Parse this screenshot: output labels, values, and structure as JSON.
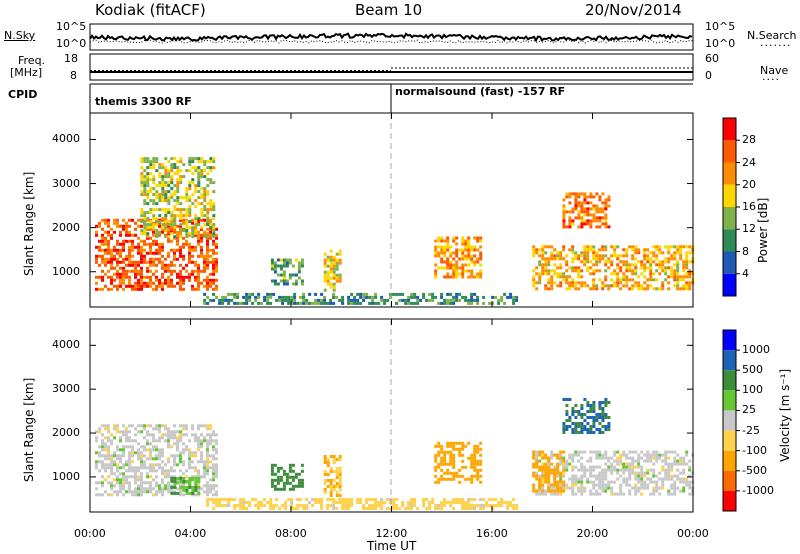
{
  "header": {
    "station": "Kodiak (fitACF)",
    "beam": "Beam 10",
    "date": "20/Nov/2014"
  },
  "top_panels": {
    "nsky_label": "N.Sky",
    "nsky_ticks": [
      "10^5",
      "10^0"
    ],
    "nsearch_label": "N.Search",
    "nsearch_ticks": [
      "10^5",
      "10^0"
    ],
    "freq_label_1": "Freq.",
    "freq_label_2": "[MHz]",
    "freq_ticks": [
      "18",
      "8"
    ],
    "nave_label": "Nave",
    "nave_ticks": [
      "60",
      "0"
    ],
    "cpid_label": "CPID",
    "cpid_segments": [
      "themis 3300 RF",
      "normalsound (fast) -157 RF"
    ]
  },
  "colors": {
    "power": [
      "#0000ff",
      "#1e5ab4",
      "#2e8b57",
      "#7fb24b",
      "#ffd700",
      "#ff8c00",
      "#ff5a00",
      "#ff0000"
    ],
    "velocity": [
      "#ff0000",
      "#ff6a00",
      "#ffa500",
      "#ffd24d",
      "#c8c8c8",
      "#64c832",
      "#3c8c3c",
      "#1e64b4",
      "#0000ff"
    ],
    "axis": "#000000",
    "divider": "#aaaaaa"
  },
  "chart_data": [
    {
      "type": "heatmap",
      "name": "power",
      "ylabel": "Slant Range [km]",
      "yticks": [
        "4000",
        "3000",
        "2000",
        "1000"
      ],
      "ylim": [
        200,
        4600
      ],
      "xlim": [
        0,
        24
      ],
      "xticks": [
        "00:00",
        "04:00",
        "08:00",
        "12:00",
        "16:00",
        "20:00",
        "00:00"
      ],
      "colorbar": {
        "label": "Power [dB]",
        "ticks": [
          "28",
          "24",
          "20",
          "16",
          "12",
          "8",
          "4"
        ],
        "range": [
          0,
          32
        ]
      },
      "regions": [
        {
          "t": [
            0.2,
            5.0
          ],
          "range": [
            600,
            2200
          ],
          "power": 26
        },
        {
          "t": [
            2.0,
            4.9
          ],
          "range": [
            1800,
            3600
          ],
          "power": 16
        },
        {
          "t": [
            7.2,
            8.5
          ],
          "range": [
            700,
            1300
          ],
          "power": 12
        },
        {
          "t": [
            9.3,
            10.0
          ],
          "range": [
            600,
            1500
          ],
          "power": 18
        },
        {
          "t": [
            13.7,
            15.5
          ],
          "range": [
            900,
            1800
          ],
          "power": 22
        },
        {
          "t": [
            17.6,
            24.0
          ],
          "range": [
            600,
            1600
          ],
          "power": 20
        },
        {
          "t": [
            18.8,
            20.6
          ],
          "range": [
            2000,
            2800
          ],
          "power": 24
        },
        {
          "t": [
            4.5,
            17.0
          ],
          "range": [
            280,
            520
          ],
          "power": 10
        }
      ]
    },
    {
      "type": "heatmap",
      "name": "velocity",
      "ylabel": "Slant Range [km]",
      "yticks": [
        "4000",
        "3000",
        "2000",
        "1000"
      ],
      "ylim": [
        200,
        4600
      ],
      "xlim": [
        0,
        24
      ],
      "xticks": [
        "00:00",
        "04:00",
        "08:00",
        "12:00",
        "16:00",
        "20:00",
        "00:00"
      ],
      "xlabel": "Time UT",
      "colorbar": {
        "label": "Velocity [m s⁻¹]",
        "ticks": [
          "1000",
          "500",
          "100",
          "25",
          "-25",
          "-100",
          "-500",
          "-1000"
        ]
      },
      "regions": [
        {
          "t": [
            0.2,
            5.0
          ],
          "range": [
            600,
            2200
          ],
          "velocity": 0
        },
        {
          "t": [
            3.2,
            4.3
          ],
          "range": [
            600,
            1000
          ],
          "velocity": 100
        },
        {
          "t": [
            7.2,
            8.5
          ],
          "range": [
            700,
            1300
          ],
          "velocity": 200
        },
        {
          "t": [
            9.3,
            10.0
          ],
          "range": [
            600,
            1500
          ],
          "velocity": -100
        },
        {
          "t": [
            13.7,
            15.5
          ],
          "range": [
            900,
            1800
          ],
          "velocity": -250
        },
        {
          "t": [
            17.6,
            24.0
          ],
          "range": [
            600,
            1600
          ],
          "velocity": 0
        },
        {
          "t": [
            17.6,
            18.8
          ],
          "range": [
            700,
            1600
          ],
          "velocity": -300
        },
        {
          "t": [
            18.8,
            20.6
          ],
          "range": [
            2000,
            2800
          ],
          "velocity": 500
        },
        {
          "t": [
            4.5,
            17.0
          ],
          "range": [
            280,
            520
          ],
          "velocity": -50
        }
      ]
    }
  ]
}
